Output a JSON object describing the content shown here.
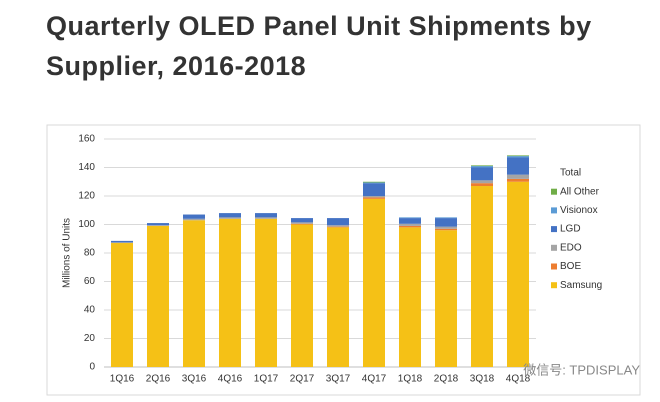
{
  "header": {
    "title_lines": [
      "Quarterly OLED Panel Unit Shipments by",
      "Supplier, 2016-2018"
    ]
  },
  "chart_data": {
    "type": "bar",
    "stacked": true,
    "y_label": "Millions of Units",
    "categories": [
      "1Q16",
      "2Q16",
      "3Q16",
      "4Q16",
      "1Q17",
      "2Q17",
      "3Q17",
      "4Q17",
      "1Q18",
      "2Q18",
      "3Q18",
      "4Q18"
    ],
    "series": [
      {
        "name": "Samsung",
        "color": "#f5c116",
        "values": [
          87,
          99,
          103,
          104,
          104,
          100,
          98,
          118,
          98,
          96,
          127,
          130
        ]
      },
      {
        "name": "BOE",
        "color": "#ed7d31",
        "values": [
          0,
          0,
          0,
          0,
          0,
          0.5,
          0.5,
          1,
          1,
          1,
          2,
          2
        ]
      },
      {
        "name": "EDO",
        "color": "#a5a5a5",
        "values": [
          0.5,
          0.5,
          1,
          1,
          1,
          1,
          1,
          1,
          1.5,
          1.5,
          2,
          3
        ]
      },
      {
        "name": "LGD",
        "color": "#4472c4",
        "values": [
          1,
          1.5,
          3,
          3,
          3,
          3,
          5,
          9,
          4,
          6,
          9,
          12
        ]
      },
      {
        "name": "Visionox",
        "color": "#5b9bd5",
        "values": [
          0,
          0,
          0,
          0,
          0,
          0,
          0,
          0.5,
          0.5,
          0.5,
          1,
          1
        ]
      },
      {
        "name": "All Other",
        "color": "#70ad47",
        "values": [
          0,
          0,
          0,
          0,
          0,
          0,
          0,
          0.5,
          0,
          0,
          0.5,
          0.5
        ]
      },
      {
        "name": "Total",
        "color": null,
        "values": [
          null,
          null,
          null,
          null,
          null,
          null,
          null,
          null,
          null,
          null,
          null,
          null
        ]
      }
    ],
    "ylim": [
      0,
      160
    ],
    "yticks": [
      0,
      20,
      40,
      60,
      80,
      100,
      120,
      140,
      160
    ],
    "grid": true,
    "legend": "right"
  },
  "watermark": "微信号: TPDISPLAY"
}
